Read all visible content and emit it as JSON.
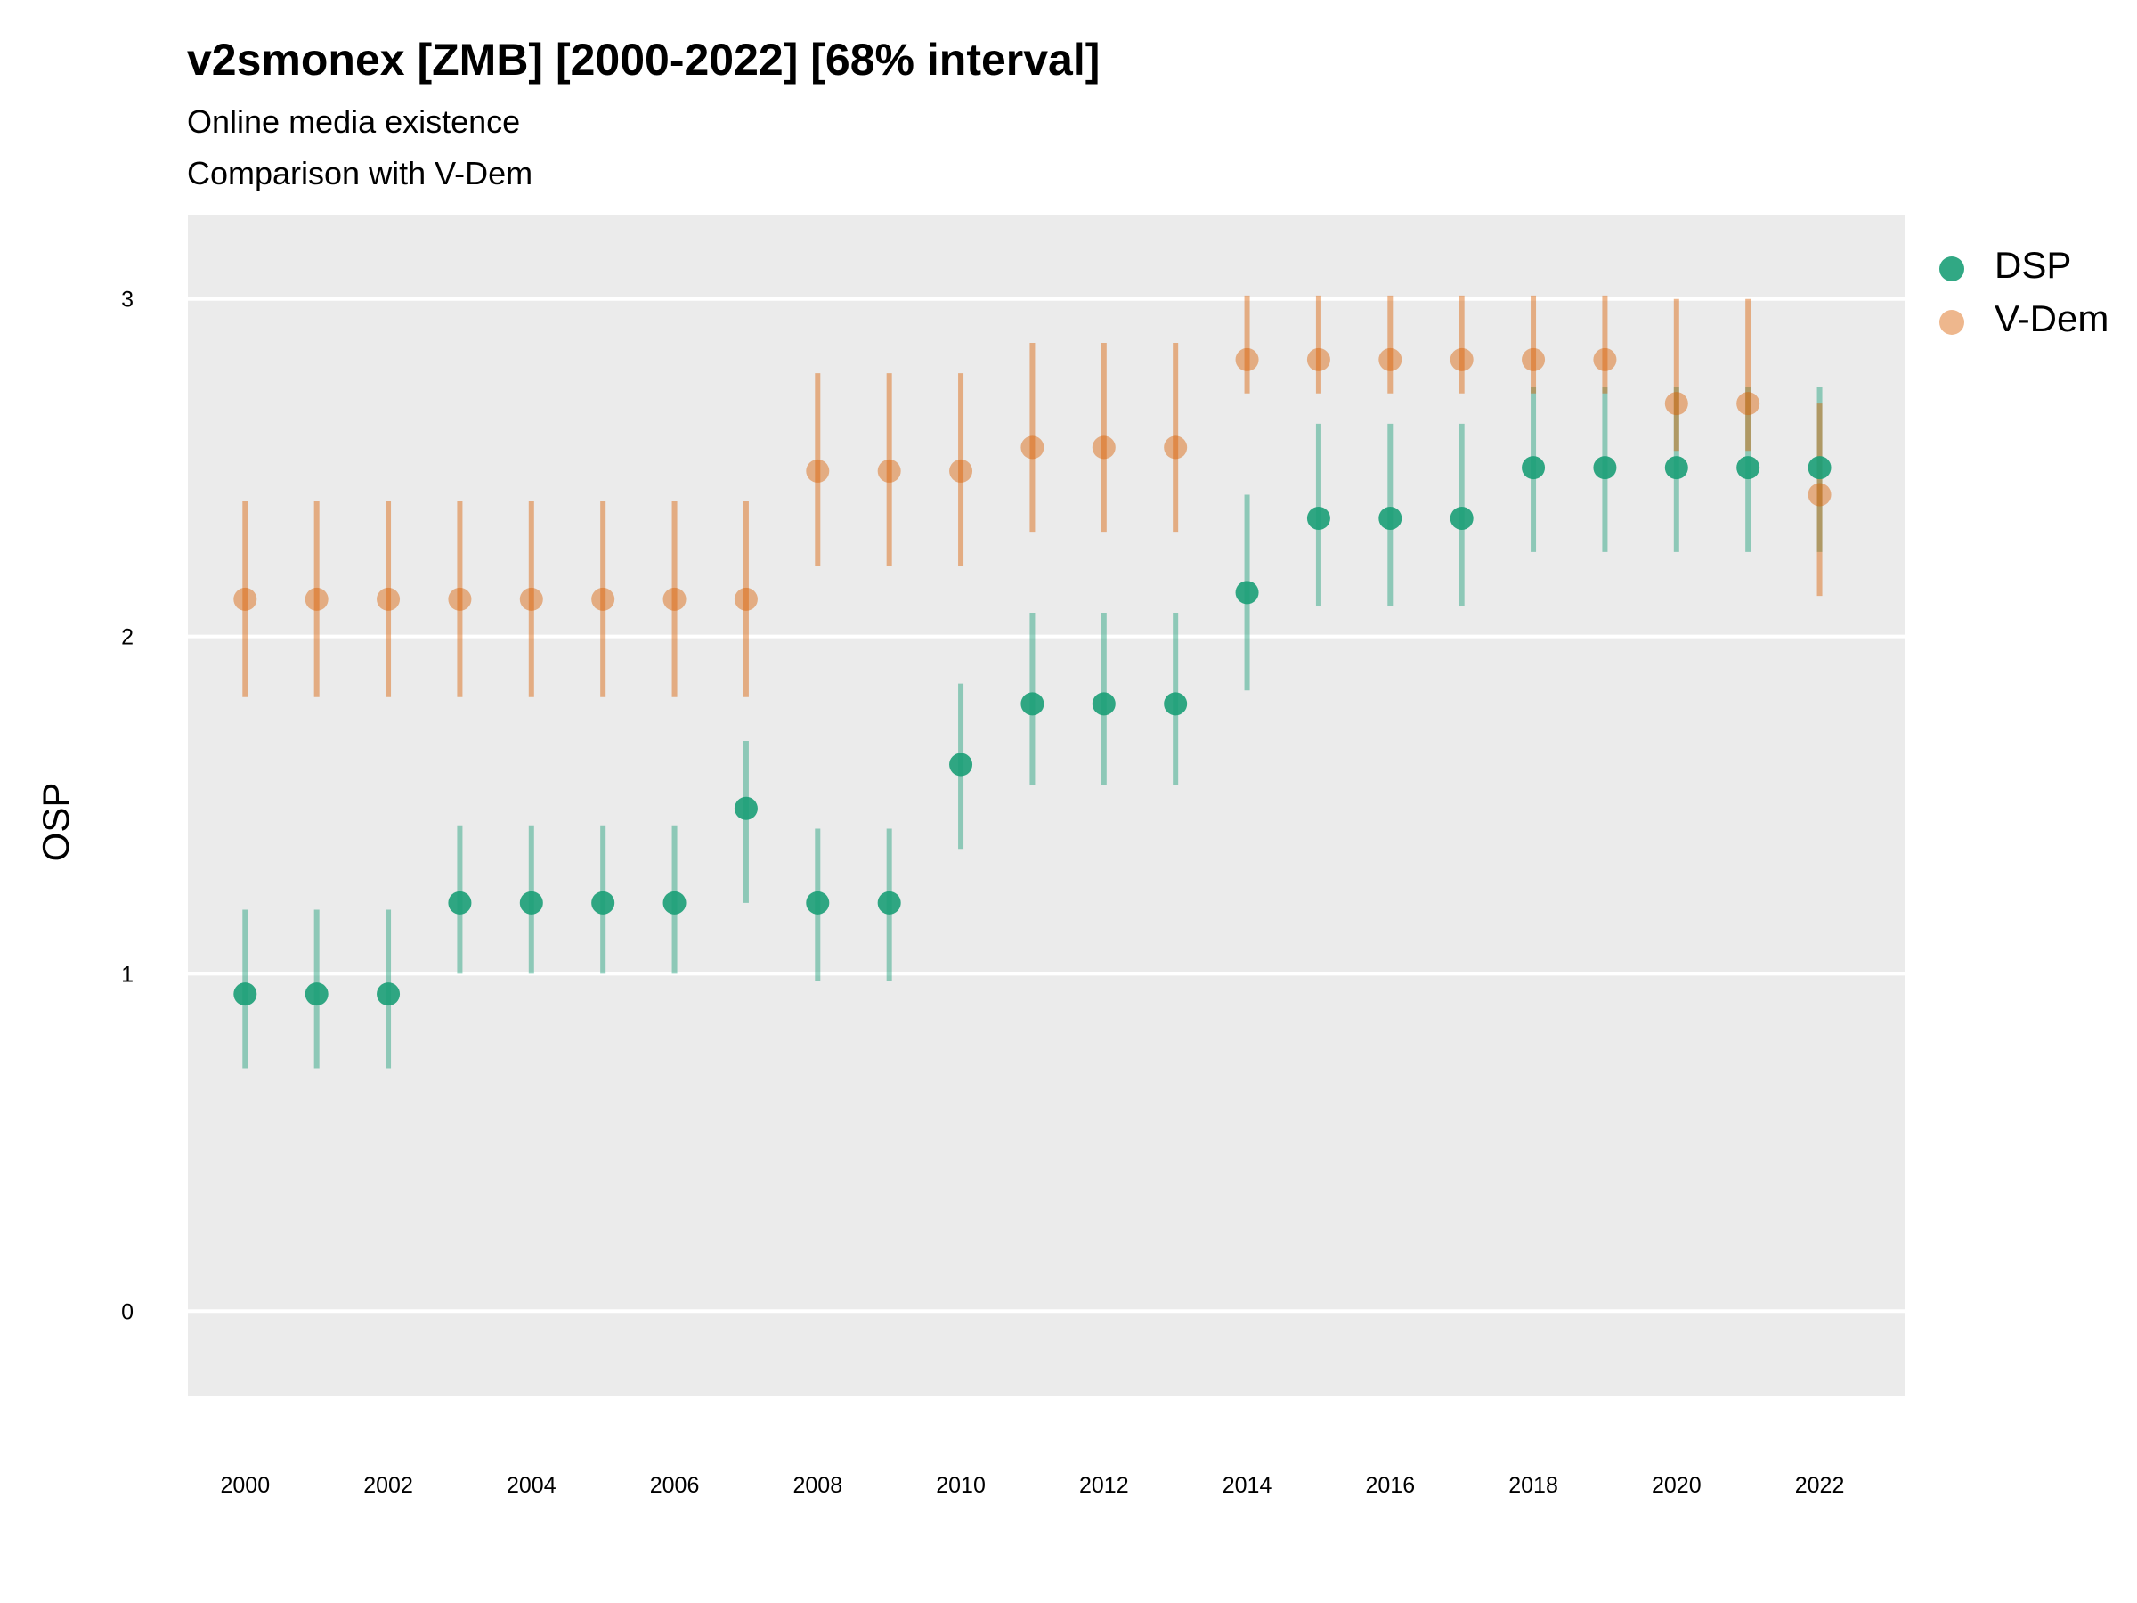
{
  "title": "v2smonex [ZMB] [2000-2022] [68% interval]",
  "subtitle_lines": [
    "Online media existence",
    "Comparison with V-Dem"
  ],
  "chart_data": {
    "type": "scatter",
    "xlabel": "",
    "ylabel": "OSP",
    "xlim": [
      1999.2,
      2023.2
    ],
    "ylim": [
      -0.25,
      3.25
    ],
    "x_ticks": [
      2000,
      2002,
      2004,
      2006,
      2008,
      2010,
      2012,
      2014,
      2016,
      2018,
      2020,
      2022
    ],
    "y_ticks": [
      0,
      1,
      2,
      3
    ],
    "grid": true,
    "legend_position": "right",
    "x": [
      2000,
      2001,
      2002,
      2003,
      2004,
      2005,
      2006,
      2007,
      2008,
      2009,
      2010,
      2011,
      2012,
      2013,
      2014,
      2015,
      2016,
      2017,
      2018,
      2019,
      2020,
      2021,
      2022
    ],
    "series": [
      {
        "name": "DSP",
        "color": "#1b9e77",
        "values": [
          0.94,
          0.94,
          0.94,
          1.21,
          1.21,
          1.21,
          1.21,
          1.49,
          1.21,
          1.21,
          1.62,
          1.8,
          1.8,
          1.8,
          2.13,
          2.35,
          2.35,
          2.35,
          2.5,
          2.5,
          2.5,
          2.5,
          2.5
        ],
        "lower": [
          0.72,
          0.72,
          0.72,
          1.0,
          1.0,
          1.0,
          1.0,
          1.21,
          0.98,
          0.98,
          1.37,
          1.56,
          1.56,
          1.56,
          1.84,
          2.09,
          2.09,
          2.09,
          2.25,
          2.25,
          2.25,
          2.25,
          2.25
        ],
        "upper": [
          1.19,
          1.19,
          1.19,
          1.44,
          1.44,
          1.44,
          1.44,
          1.69,
          1.43,
          1.43,
          1.86,
          2.07,
          2.07,
          2.07,
          2.42,
          2.63,
          2.63,
          2.63,
          2.74,
          2.74,
          2.74,
          2.74,
          2.74
        ]
      },
      {
        "name": "V-Dem",
        "color": "#d95f02",
        "values": [
          2.11,
          2.11,
          2.11,
          2.11,
          2.11,
          2.11,
          2.11,
          2.11,
          2.49,
          2.49,
          2.49,
          2.56,
          2.56,
          2.56,
          2.82,
          2.82,
          2.82,
          2.82,
          2.82,
          2.82,
          2.69,
          2.69,
          2.42
        ],
        "lower": [
          1.82,
          1.82,
          1.82,
          1.82,
          1.82,
          1.82,
          1.82,
          1.82,
          2.21,
          2.21,
          2.21,
          2.31,
          2.31,
          2.31,
          2.72,
          2.72,
          2.72,
          2.72,
          2.72,
          2.72,
          2.55,
          2.55,
          2.12
        ],
        "upper": [
          2.4,
          2.4,
          2.4,
          2.4,
          2.4,
          2.4,
          2.4,
          2.4,
          2.78,
          2.78,
          2.78,
          2.87,
          2.87,
          2.87,
          3.01,
          3.01,
          3.01,
          3.01,
          3.01,
          3.01,
          3.0,
          3.0,
          2.69
        ]
      }
    ]
  }
}
